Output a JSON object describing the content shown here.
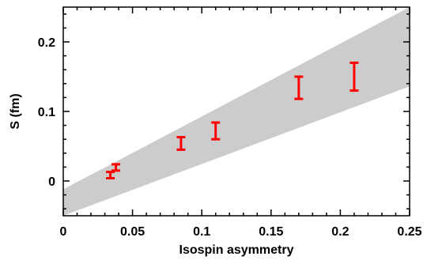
{
  "chart_data": {
    "type": "scatter",
    "xlabel": "Isospin asymmetry",
    "ylabel": "S (fm)",
    "xlim": [
      0,
      0.25
    ],
    "ylim": [
      -0.05,
      0.25
    ],
    "x_ticks": [
      0,
      0.05,
      0.1,
      0.15,
      0.2,
      0.25
    ],
    "x_tick_labels": [
      "0",
      "0.05",
      "0.1",
      "0.15",
      "0.2",
      "0.25"
    ],
    "y_ticks": [
      0,
      0.1,
      0.2
    ],
    "y_tick_labels": [
      "0",
      "0.1",
      "0.2"
    ],
    "grid": false,
    "band": {
      "color": "#cccccc",
      "lower": [
        [
          0,
          -0.05
        ],
        [
          0.25,
          0.136
        ]
      ],
      "upper": [
        [
          0,
          -0.012
        ],
        [
          0.25,
          0.25
        ]
      ]
    },
    "series": [
      {
        "color": "#ff0000",
        "points": [
          {
            "x": 0.034,
            "y_low": 0.004,
            "y_high": 0.013
          },
          {
            "x": 0.038,
            "y_low": 0.015,
            "y_high": 0.024
          },
          {
            "x": 0.085,
            "y_low": 0.045,
            "y_high": 0.063
          },
          {
            "x": 0.11,
            "y_low": 0.06,
            "y_high": 0.084
          },
          {
            "x": 0.17,
            "y_low": 0.118,
            "y_high": 0.15
          },
          {
            "x": 0.21,
            "y_low": 0.13,
            "y_high": 0.17
          }
        ]
      }
    ]
  }
}
